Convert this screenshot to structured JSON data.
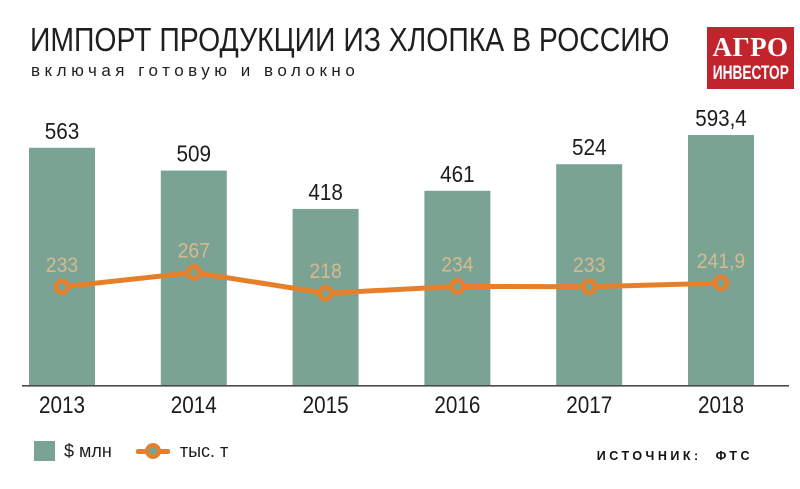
{
  "header": {
    "title": "ИМПОРТ ПРОДУКЦИИ ИЗ ХЛОПКА В РОССИЮ",
    "subtitle": "включая готовую и волокно",
    "logo": {
      "line1": "АГРО",
      "line2": "ИНВЕСТОР",
      "bg_color": "#C2242E",
      "text_color": "#FFFFFF"
    }
  },
  "chart_data": {
    "type": "bar",
    "subtype": "bar-line-combo",
    "title": "ИМПОРТ ПРОДУКЦИИ ИЗ ХЛОПКА В РОССИЮ",
    "subtitle": "включая готовую и волокно",
    "categories": [
      "2013",
      "2014",
      "2015",
      "2016",
      "2017",
      "2018"
    ],
    "series": [
      {
        "name": "$ млн",
        "type": "bar",
        "color": "#7BA394",
        "label_color": "#1C1C1C",
        "values": [
          563,
          509,
          418,
          461,
          524,
          593.4
        ],
        "labels": [
          "563",
          "509",
          "418",
          "461",
          "524",
          "593,4"
        ]
      },
      {
        "name": "тыс. т",
        "type": "line",
        "color": "#E67F2A",
        "label_color": "#D6BA8E",
        "values": [
          233,
          267,
          218,
          234,
          233,
          241.9
        ],
        "labels": [
          "233",
          "267",
          "218",
          "234",
          "233",
          "241,9"
        ]
      }
    ],
    "ylim": [
      0,
      660
    ],
    "grid": false,
    "axis_color": "#4D4D4D",
    "legend_position": "bottom-left"
  },
  "source": {
    "label": "ИСТОЧНИК:",
    "value": "ФТС"
  }
}
